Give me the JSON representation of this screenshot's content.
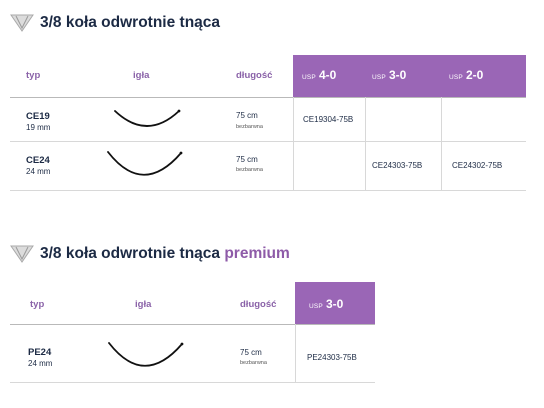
{
  "tables": [
    {
      "title": "3/8 koła odwrotnie tnąca",
      "title_suffix": "",
      "headers": {
        "typ": "typ",
        "igla": "igła",
        "dlugosc": "długość"
      },
      "usp_label": "USP",
      "usp_sizes": [
        "4-0",
        "3-0",
        "2-0"
      ],
      "rows": [
        {
          "code": "CE19",
          "mm": "19 mm",
          "length": "75 cm",
          "color": "bezbarwna",
          "cells": [
            "CE19304-75B",
            "",
            ""
          ]
        },
        {
          "code": "CE24",
          "mm": "24 mm",
          "length": "75 cm",
          "color": "bezbarwna",
          "cells": [
            "",
            "CE24303-75B",
            "CE24302-75B"
          ]
        }
      ]
    },
    {
      "title": "3/8 koła odwrotnie tnąca",
      "title_suffix": "premium",
      "headers": {
        "typ": "typ",
        "igla": "igła",
        "dlugosc": "długość"
      },
      "usp_label": "USP",
      "usp_sizes": [
        "3-0"
      ],
      "rows": [
        {
          "code": "PE24",
          "mm": "24 mm",
          "length": "75 cm",
          "color": "bezbarwna",
          "cells": [
            "PE24303-75B"
          ]
        }
      ]
    }
  ],
  "colors": {
    "accent": "#9a66b6",
    "header_text": "#8a62a8",
    "title": "#1c2a44",
    "premium": "#8e5ba8"
  },
  "icons": {
    "title": "inverted-triangle-icon",
    "needle": "curved-needle-icon"
  }
}
